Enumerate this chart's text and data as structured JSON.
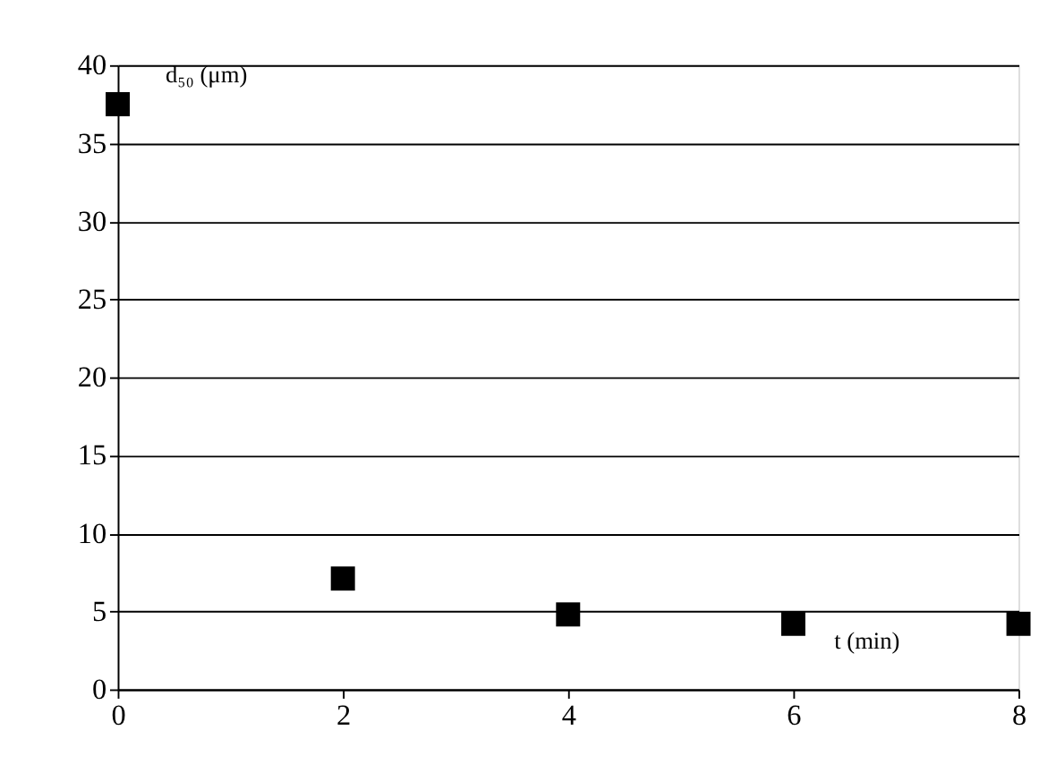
{
  "chart_data": {
    "type": "scatter",
    "xlabel": "t (min)",
    "ylabel": "d₅₀ (μm)",
    "x": [
      0,
      2,
      4,
      6,
      8
    ],
    "series": [
      {
        "color": "#000000",
        "values": [
          37.5,
          7.1,
          4.8,
          4.2,
          4.2
        ]
      }
    ],
    "xlim": [
      0,
      8
    ],
    "xticks": [
      0,
      2,
      4,
      6,
      8
    ],
    "ylim": [
      0,
      40
    ],
    "yticks": [
      0,
      5,
      10,
      15,
      20,
      25,
      30,
      35,
      40
    ],
    "grid": "y",
    "marker": "square",
    "legend": false
  }
}
